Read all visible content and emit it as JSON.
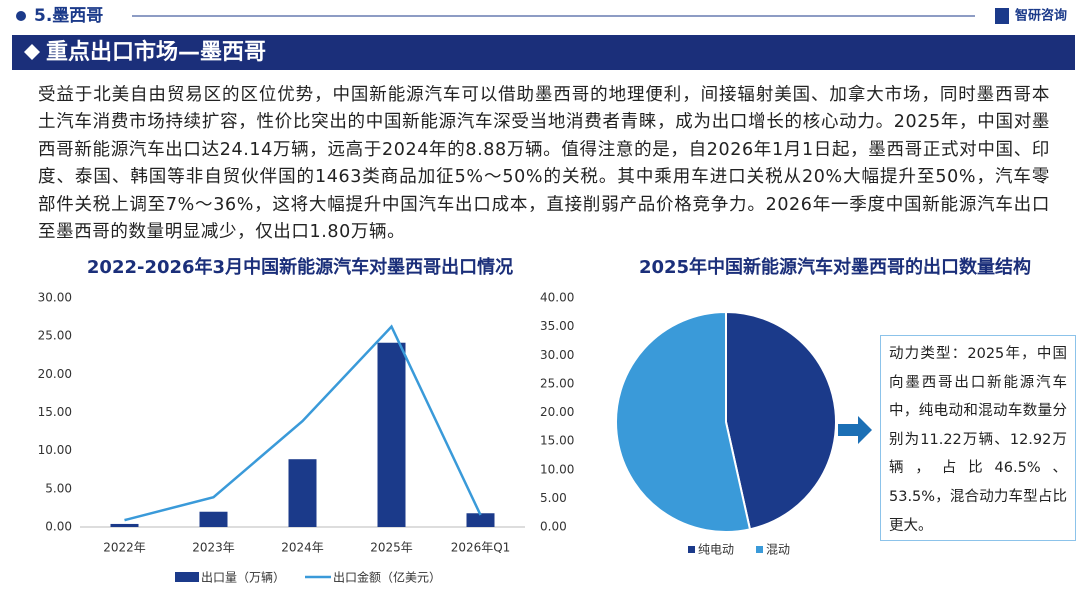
{
  "header": {
    "section": "5.墨西哥",
    "brand": "智研咨询",
    "title": "重点出口市场—墨西哥"
  },
  "paragraph": "受益于北美自由贸易区的区位优势，中国新能源汽车可以借助墨西哥的地理便利，间接辐射美国、加拿大市场，同时墨西哥本土汽车消费市场持续扩容，性价比突出的中国新能源汽车深受当地消费者青睐，成为出口增长的核心动力。2025年，中国对墨西哥新能源汽车出口达24.14万辆，远高于2024年的8.88万辆。值得注意的是，自2026年1月1日起，墨西哥正式对中国、印度、泰国、韩国等非自贸伙伴国的1463类商品加征5%～50%的关税。其中乘用车进口关税从20%大幅提升至50%，汽车零部件关税上调至7%～36%，这将大幅提升中国汽车出口成本，直接削弱产品价格竞争力。2026年一季度中国新能源汽车出口至墨西哥的数量明显减少，仅出口1.80万辆。",
  "chart_data": [
    {
      "type": "bar",
      "title": "2022-2026年3月中国新能源汽车对墨西哥出口情况",
      "categories": [
        "2022年",
        "2023年",
        "2024年",
        "2025年",
        "2026年Q1"
      ],
      "series": [
        {
          "name": "出口量（万辆）",
          "color": "#1b3a8a",
          "type": "bar",
          "values": [
            0.4,
            2.0,
            8.88,
            24.14,
            1.8
          ]
        },
        {
          "name": "出口金额（亿美元）",
          "color": "#3a9ad9",
          "type": "line",
          "axis": "y2",
          "values": [
            1.2,
            5.2,
            18.5,
            35.0,
            2.1
          ]
        }
      ],
      "ylim": [
        0,
        30
      ],
      "yticks": [
        {
          "value": 0,
          "label": "0.00"
        },
        {
          "value": 5,
          "label": "5.00"
        },
        {
          "value": 10,
          "label": "10.00"
        },
        {
          "value": 15,
          "label": "15.00"
        },
        {
          "value": 20,
          "label": "20.00"
        },
        {
          "value": 25,
          "label": "25.00"
        },
        {
          "value": 30,
          "label": "30.00"
        }
      ],
      "y2lim": [
        0,
        40
      ],
      "y2ticks": [
        {
          "value": 0,
          "label": "0.00"
        },
        {
          "value": 5,
          "label": "5.00"
        },
        {
          "value": 10,
          "label": "10.00"
        },
        {
          "value": 15,
          "label": "15.00"
        },
        {
          "value": 20,
          "label": "20.00"
        },
        {
          "value": 25,
          "label": "25.00"
        },
        {
          "value": 30,
          "label": "30.00"
        },
        {
          "value": 35,
          "label": "35.00"
        },
        {
          "value": 40,
          "label": "40.00"
        }
      ],
      "grid": false
    },
    {
      "type": "pie",
      "title": "2025年中国新能源汽车对墨西哥的出口数量结构",
      "categories": [
        "纯电动",
        "混动"
      ],
      "values": [
        46.5,
        53.5
      ],
      "colors": [
        "#1b3a8a",
        "#3a9ad9"
      ],
      "annotation": "动力类型：2025年，中国向墨西哥出口新能源汽车中，纯电动和混动车数量分别为11.22万辆、12.92万辆，占比46.5%、53.5%，混合动力车型占比更大。"
    }
  ]
}
